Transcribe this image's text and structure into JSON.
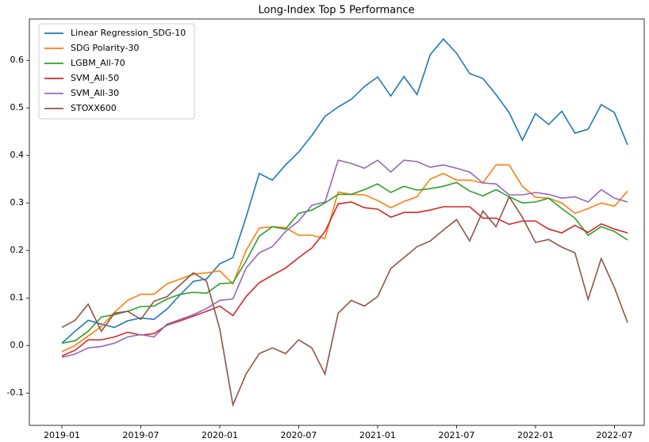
{
  "chart_data": {
    "type": "line",
    "title": "Long-Index Top 5 Performance",
    "x": [
      "2019-01",
      "2019-02",
      "2019-03",
      "2019-04",
      "2019-05",
      "2019-06",
      "2019-07",
      "2019-08",
      "2019-09",
      "2019-10",
      "2019-11",
      "2019-12",
      "2020-01",
      "2020-02",
      "2020-03",
      "2020-04",
      "2020-05",
      "2020-06",
      "2020-07",
      "2020-08",
      "2020-09",
      "2020-10",
      "2020-11",
      "2020-12",
      "2021-01",
      "2021-02",
      "2021-03",
      "2021-04",
      "2021-05",
      "2021-06",
      "2021-07",
      "2021-08",
      "2021-09",
      "2021-10",
      "2021-11",
      "2021-12",
      "2022-01",
      "2022-02",
      "2022-03",
      "2022-04",
      "2022-05",
      "2022-06",
      "2022-07",
      "2022-08"
    ],
    "xticks": [
      "2019-01",
      "2019-07",
      "2020-01",
      "2020-07",
      "2021-01",
      "2021-07",
      "2022-01",
      "2022-07"
    ],
    "ylim": [
      -0.168,
      0.687
    ],
    "yticks": [
      -0.1,
      {
        "value": 0,
        "label": "0.0"
      },
      0.1,
      0.2,
      0.3,
      0.4,
      0.5,
      0.6
    ],
    "grid": false,
    "legend": "upper left",
    "series": [
      {
        "name": "Linear Regression_SDG-10",
        "color": "#1f77b4",
        "values": [
          0.005,
          0.03,
          0.053,
          0.045,
          0.038,
          0.052,
          0.058,
          0.055,
          0.077,
          0.107,
          0.135,
          0.14,
          0.172,
          0.185,
          0.27,
          0.362,
          0.348,
          0.38,
          0.407,
          0.442,
          0.482,
          0.502,
          0.518,
          0.545,
          0.565,
          0.525,
          0.566,
          0.528,
          0.612,
          0.645,
          0.615,
          0.572,
          0.562,
          0.528,
          0.49,
          0.432,
          0.488,
          0.465,
          0.493,
          0.447,
          0.455,
          0.507,
          0.49,
          0.422
        ]
      },
      {
        "name": "SDG Polarity-30",
        "color": "#ff7f0e",
        "values": [
          -0.013,
          0.0,
          0.02,
          0.04,
          0.07,
          0.095,
          0.108,
          0.108,
          0.13,
          0.14,
          0.15,
          0.153,
          0.157,
          0.13,
          0.2,
          0.247,
          0.25,
          0.248,
          0.232,
          0.232,
          0.225,
          0.323,
          0.318,
          0.317,
          0.305,
          0.29,
          0.303,
          0.313,
          0.35,
          0.362,
          0.348,
          0.348,
          0.342,
          0.38,
          0.38,
          0.335,
          0.312,
          0.31,
          0.3,
          0.278,
          0.288,
          0.3,
          0.293,
          0.325
        ]
      },
      {
        "name": "LGBM_All-70",
        "color": "#2ca02c",
        "values": [
          0.005,
          0.01,
          0.03,
          0.06,
          0.065,
          0.072,
          0.082,
          0.083,
          0.098,
          0.108,
          0.112,
          0.11,
          0.13,
          0.132,
          0.178,
          0.23,
          0.25,
          0.245,
          0.278,
          0.285,
          0.3,
          0.318,
          0.318,
          0.328,
          0.34,
          0.322,
          0.335,
          0.327,
          0.33,
          0.335,
          0.343,
          0.325,
          0.315,
          0.328,
          0.313,
          0.3,
          0.302,
          0.31,
          0.288,
          0.268,
          0.232,
          0.25,
          0.24,
          0.222
        ]
      },
      {
        "name": "SVM_All-50",
        "color": "#d62728",
        "values": [
          -0.022,
          -0.01,
          0.012,
          0.012,
          0.018,
          0.028,
          0.022,
          0.025,
          0.043,
          0.052,
          0.062,
          0.072,
          0.083,
          0.063,
          0.103,
          0.132,
          0.148,
          0.163,
          0.185,
          0.205,
          0.24,
          0.298,
          0.302,
          0.29,
          0.287,
          0.27,
          0.28,
          0.28,
          0.285,
          0.292,
          0.292,
          0.292,
          0.268,
          0.268,
          0.255,
          0.262,
          0.262,
          0.245,
          0.237,
          0.253,
          0.238,
          0.256,
          0.245,
          0.237
        ]
      },
      {
        "name": "SVM_All-30",
        "color": "#9467bd",
        "values": [
          -0.025,
          -0.018,
          -0.005,
          -0.002,
          0.005,
          0.018,
          0.023,
          0.018,
          0.045,
          0.055,
          0.065,
          0.078,
          0.095,
          0.098,
          0.163,
          0.195,
          0.208,
          0.24,
          0.262,
          0.295,
          0.302,
          0.39,
          0.383,
          0.373,
          0.39,
          0.365,
          0.39,
          0.387,
          0.375,
          0.38,
          0.373,
          0.365,
          0.342,
          0.34,
          0.317,
          0.317,
          0.322,
          0.318,
          0.31,
          0.313,
          0.302,
          0.328,
          0.31,
          0.302
        ]
      },
      {
        "name": "STOXX600",
        "color": "#8c564b",
        "values": [
          0.038,
          0.053,
          0.087,
          0.03,
          0.068,
          0.072,
          0.055,
          0.093,
          0.103,
          0.128,
          0.153,
          0.135,
          0.035,
          -0.125,
          -0.06,
          -0.017,
          -0.005,
          -0.017,
          0.012,
          -0.005,
          -0.06,
          0.068,
          0.095,
          0.083,
          0.103,
          0.162,
          0.185,
          0.208,
          0.22,
          0.243,
          0.265,
          0.22,
          0.283,
          0.25,
          0.313,
          0.27,
          0.217,
          0.223,
          0.207,
          0.195,
          0.097,
          0.183,
          0.122,
          0.048
        ]
      }
    ]
  }
}
